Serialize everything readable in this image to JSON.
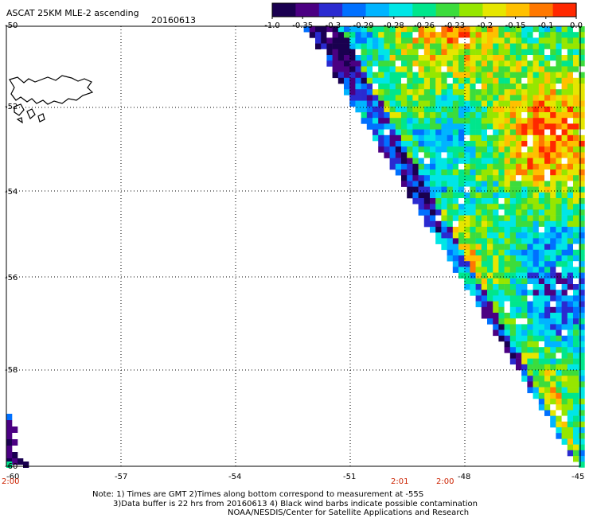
{
  "header": {
    "title": "ASCAT 25KM MLE-2 ascending",
    "date": "20160613"
  },
  "colorbar": {
    "labels": [
      "-1.0",
      "-0.35",
      "-0.3",
      "-0.29",
      "-0.28",
      "-0.26",
      "-0.23",
      "-0.2",
      "-0.15",
      "-0.1",
      "0.0"
    ],
    "colors": [
      "#1a0050",
      "#4b0082",
      "#2a2ad0",
      "#0070ff",
      "#00b4ff",
      "#00e6e6",
      "#00e68c",
      "#3cdc3c",
      "#96e600",
      "#e6e600",
      "#ffc000",
      "#ff7800",
      "#ff2800"
    ]
  },
  "axes": {
    "lat_labels": [
      "-50",
      "-52",
      "-54",
      "-56",
      "-58",
      "-60"
    ],
    "lon_labels": [
      "-60",
      "-57",
      "-54",
      "-51",
      "-48",
      "-45"
    ]
  },
  "time_labels": [
    "2:00",
    "2:01",
    "2:00"
  ],
  "notes": {
    "line1": "Note: 1) Times are GMT 2)Times along bottom correspond to measurement at -55S",
    "line2": "3)Data buffer is 22 hrs from 20160613 4) Black wind barbs indicate possible contamination",
    "line3": "NOAA/NESDIS/Center for Satellite Applications and Research"
  }
}
